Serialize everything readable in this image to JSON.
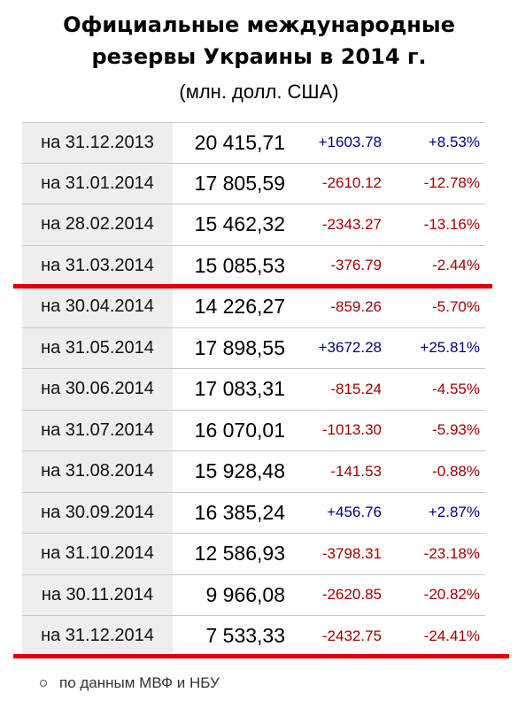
{
  "header": {
    "title_line1": "Официальные международные",
    "title_line2": "резервы Украины в 2014 г.",
    "subtitle": "(млн. долл. США)"
  },
  "rows": [
    {
      "date": "на 31.12.2013",
      "value": "20 415,71",
      "change": "+1603.78",
      "pct": "+8.53%",
      "sign": "pos"
    },
    {
      "date": "на 31.01.2014",
      "value": "17 805,59",
      "change": "-2610.12",
      "pct": "-12.78%",
      "sign": "neg"
    },
    {
      "date": "на 28.02.2014",
      "value": "15 462,32",
      "change": "-2343.27",
      "pct": "-13.16%",
      "sign": "neg"
    },
    {
      "date": "на 31.03.2014",
      "value": "15 085,53",
      "change": "-376.79",
      "pct": "-2.44%",
      "sign": "neg"
    },
    {
      "date": "на 30.04.2014",
      "value": "14 226,27",
      "change": "-859.26",
      "pct": "-5.70%",
      "sign": "neg"
    },
    {
      "date": "на 31.05.2014",
      "value": "17 898,55",
      "change": "+3672.28",
      "pct": "+25.81%",
      "sign": "pos"
    },
    {
      "date": "на 30.06.2014",
      "value": "17 083,31",
      "change": "-815.24",
      "pct": "-4.55%",
      "sign": "neg"
    },
    {
      "date": "на 31.07.2014",
      "value": "16 070,01",
      "change": "-1013.30",
      "pct": "-5.93%",
      "sign": "neg"
    },
    {
      "date": "на 31.08.2014",
      "value": "15 928,48",
      "change": "-141.53",
      "pct": "-0.88%",
      "sign": "neg"
    },
    {
      "date": "на 30.09.2014",
      "value": "16 385,24",
      "change": "+456.76",
      "pct": "+2.87%",
      "sign": "pos"
    },
    {
      "date": "на 31.10.2014",
      "value": "12 586,93",
      "change": "-3798.31",
      "pct": "-23.18%",
      "sign": "neg"
    },
    {
      "date": "на 30.11.2014",
      "value": "9 966,08",
      "change": "-2620.85",
      "pct": "-20.82%",
      "sign": "neg"
    },
    {
      "date": "на 31.12.2014",
      "value": "7 533,33",
      "change": "-2432.75",
      "pct": "-24.41%",
      "sign": "neg"
    }
  ],
  "colors": {
    "positive": "#000080",
    "negative": "#a00000",
    "marker_line": "#e00000",
    "date_cell_bg": "#eeeeee"
  },
  "footnote": "по данным МВФ и НБУ"
}
